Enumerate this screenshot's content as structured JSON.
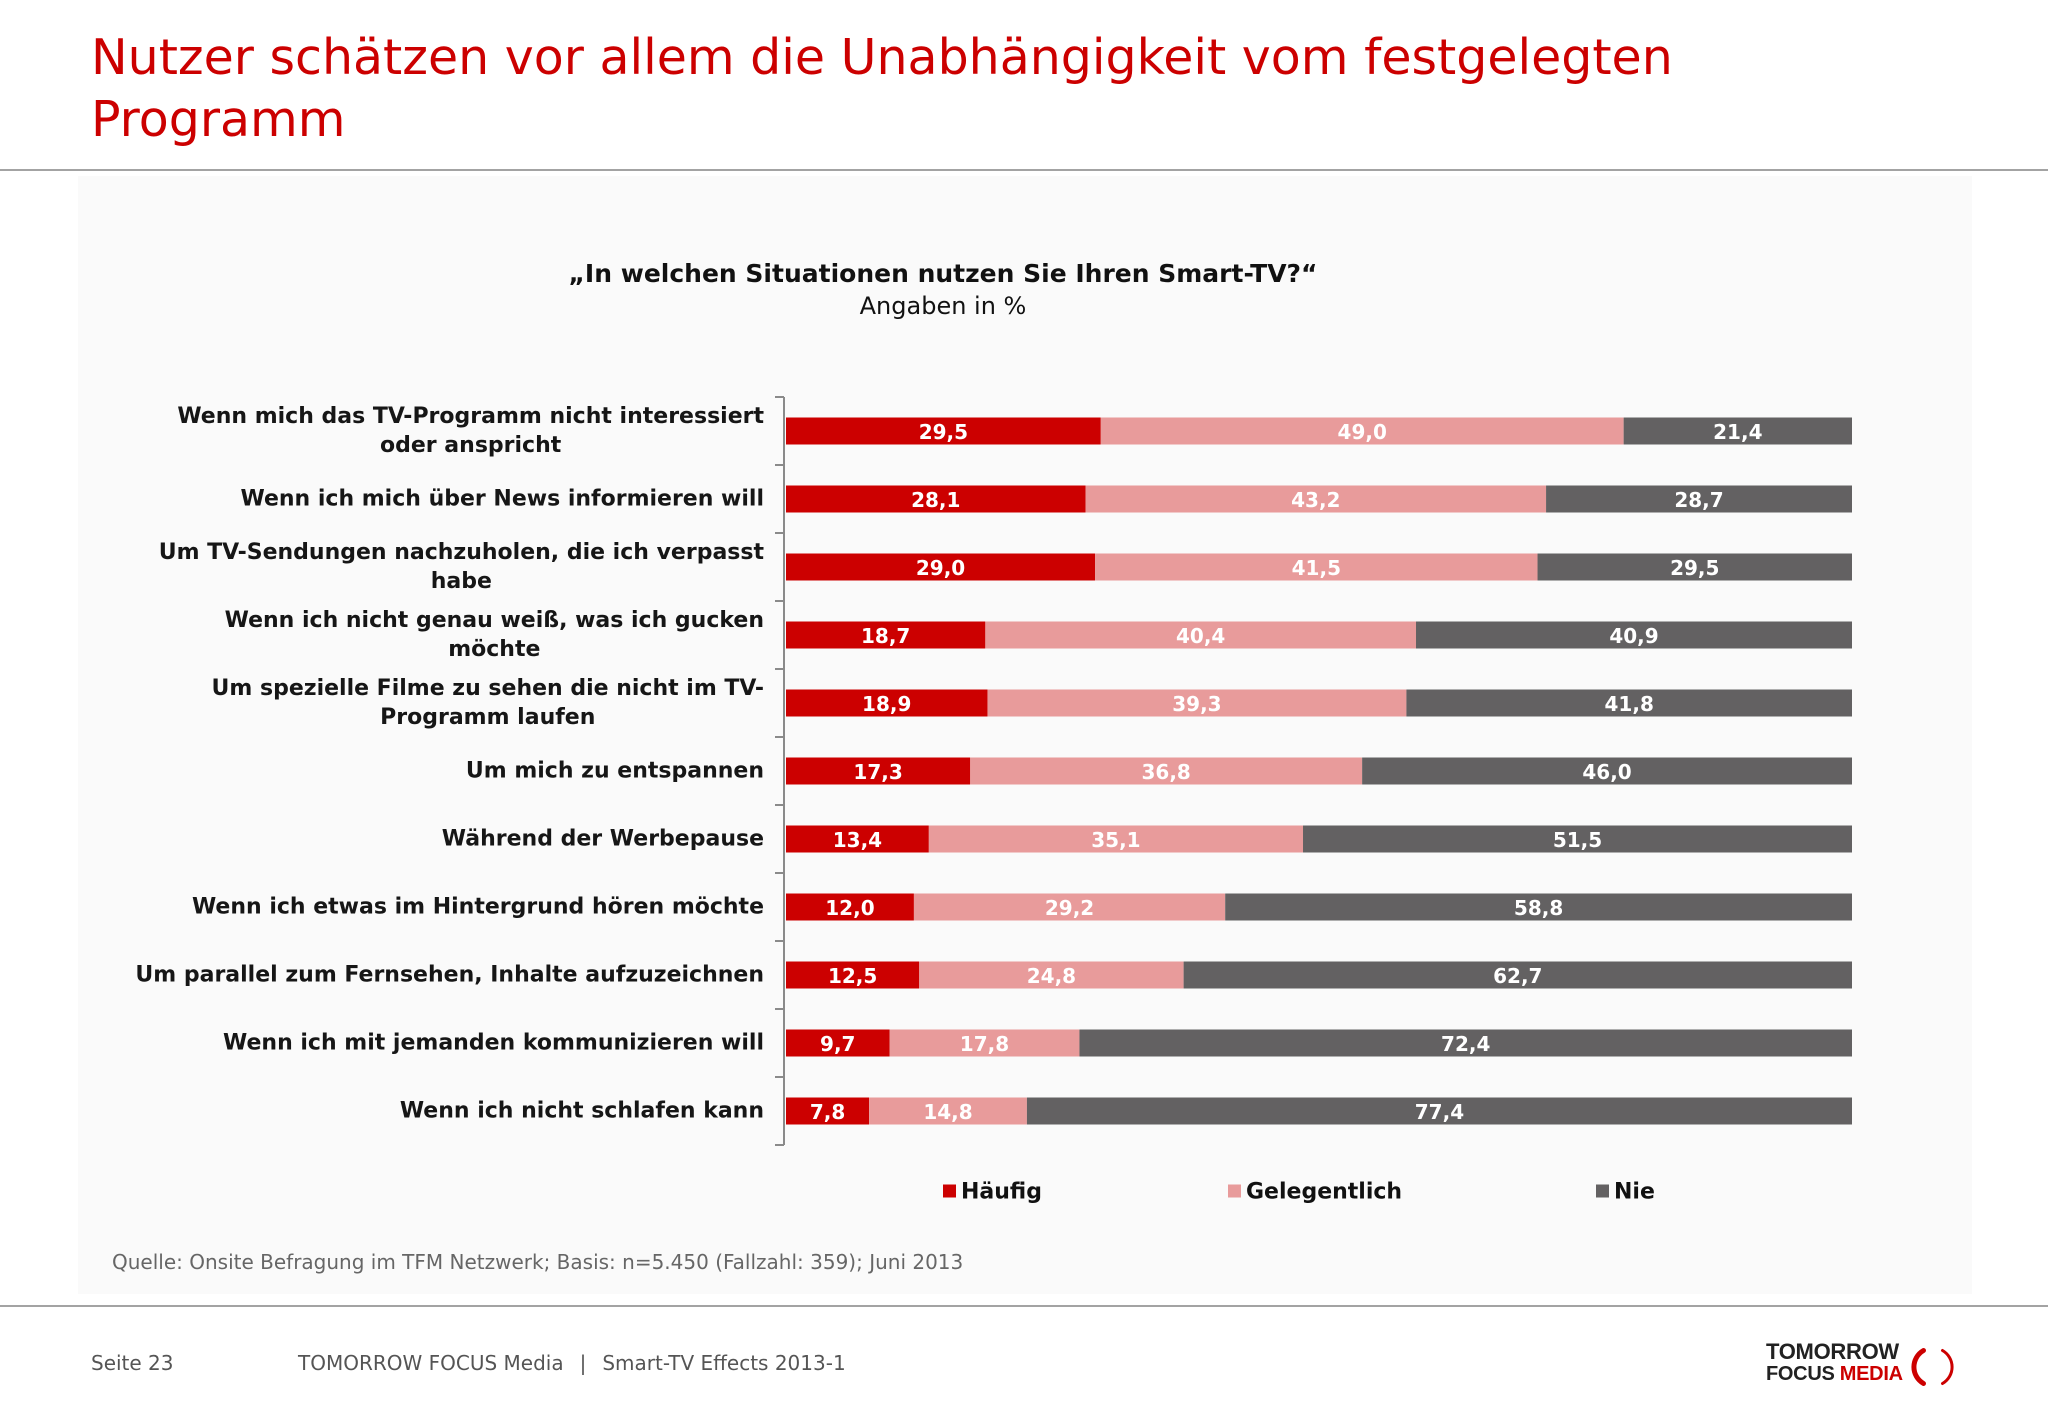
{
  "header": {
    "title": "Nutzer schätzen vor allem die Unabhängigkeit vom festgelegten Programm"
  },
  "chart_data": {
    "type": "bar",
    "stacked": true,
    "title": "„In welchen Situationen nutzen Sie Ihren Smart-TV?“",
    "subtitle": "Angaben in %",
    "categories": [
      "Wenn mich das TV-Programm nicht interessiert\noder anspricht",
      "Wenn ich mich über News informieren will",
      "Um TV-Sendungen nachzuholen, die ich verpasst\nhabe",
      "Wenn ich nicht genau weiß, was ich gucken\nmöchte",
      "Um spezielle Filme zu sehen die nicht im TV-\nProgramm laufen",
      "Um mich zu entspannen",
      "Während der Werbepause",
      "Wenn ich etwas im Hintergrund hören möchte",
      "Um parallel zum Fernsehen, Inhalte aufzuzeichnen",
      "Wenn ich mit jemanden kommunizieren will",
      "Wenn ich nicht schlafen kann"
    ],
    "series": [
      {
        "name": "Häufig",
        "color": "#cc0000",
        "values": [
          29.5,
          28.1,
          29.0,
          18.7,
          18.9,
          17.3,
          13.4,
          12.0,
          12.5,
          9.7,
          7.8
        ]
      },
      {
        "name": "Gelegentlich",
        "color": "#e89b9b",
        "values": [
          49.0,
          43.2,
          41.5,
          40.4,
          39.3,
          36.8,
          35.1,
          29.2,
          24.8,
          17.8,
          14.8
        ]
      },
      {
        "name": "Nie",
        "color": "#636162",
        "values": [
          21.4,
          28.7,
          29.5,
          40.9,
          41.8,
          46.0,
          51.5,
          58.8,
          62.7,
          72.4,
          77.4
        ]
      }
    ],
    "xlim": [
      0,
      100
    ],
    "legend": "bottom"
  },
  "source": "Quelle: Onsite Befragung im TFM Netzwerk; Basis: n=5.450 (Fallzahl: 359); Juni 2013",
  "footer": {
    "page": "Seite 23",
    "company": "TOMORROW FOCUS Media",
    "separator": "|",
    "report": "Smart-TV Effects 2013-1"
  },
  "logo": {
    "line1": "TOMORROW",
    "line2_a": "FOCUS",
    "line2_b": "MEDIA"
  },
  "colors": {
    "accent": "#cc0000",
    "text": "#161616",
    "muted": "#666666",
    "rule": "#a3a3a3",
    "axis": "#8a8a8a"
  }
}
